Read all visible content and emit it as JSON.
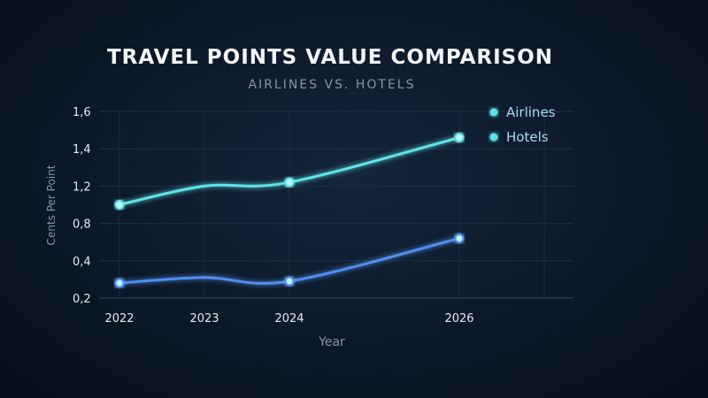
{
  "chart_data": {
    "type": "line",
    "title": "TRAVEL POINTS VALUE COMPARISON",
    "subtitle": "AIRLINES VS. HOTELS",
    "xlabel": "Year",
    "ylabel": "Cents Per Point",
    "x": [
      2022,
      2023,
      2024,
      2026
    ],
    "x_tick_labels": [
      "2022",
      "2023",
      "2024",
      "2026"
    ],
    "x_range": [
      2022,
      2027
    ],
    "ylim": [
      0.2,
      1.6
    ],
    "y_ticks": [
      0.2,
      0.4,
      0.8,
      1.2,
      1.4,
      1.6
    ],
    "y_tick_labels": [
      "0,2",
      "0,4",
      "0,8",
      "1,2",
      "1,4",
      "1,6"
    ],
    "y_tick_note": "tick labels are evenly spaced on screen",
    "grid": true,
    "legend_position": "top-right",
    "series": [
      {
        "name": "Airlines",
        "x": [
          2022,
          2023,
          2024,
          2026
        ],
        "values": [
          1.0,
          1.2,
          1.22,
          1.46
        ],
        "marker_x": [
          2022,
          2024,
          2026
        ],
        "color": "#5fe3ea"
      },
      {
        "name": "Hotels",
        "x": [
          2022,
          2023,
          2024,
          2026
        ],
        "values": [
          0.28,
          0.31,
          0.29,
          0.64
        ],
        "marker_x": [
          2022,
          2024,
          2026
        ],
        "color": "#4d8ff0"
      }
    ],
    "legend_entries": [
      {
        "label": "Airlines",
        "dot_color": "#5fe3ea"
      },
      {
        "label": "Hotels",
        "dot_color": "#5fe3ea"
      }
    ]
  }
}
